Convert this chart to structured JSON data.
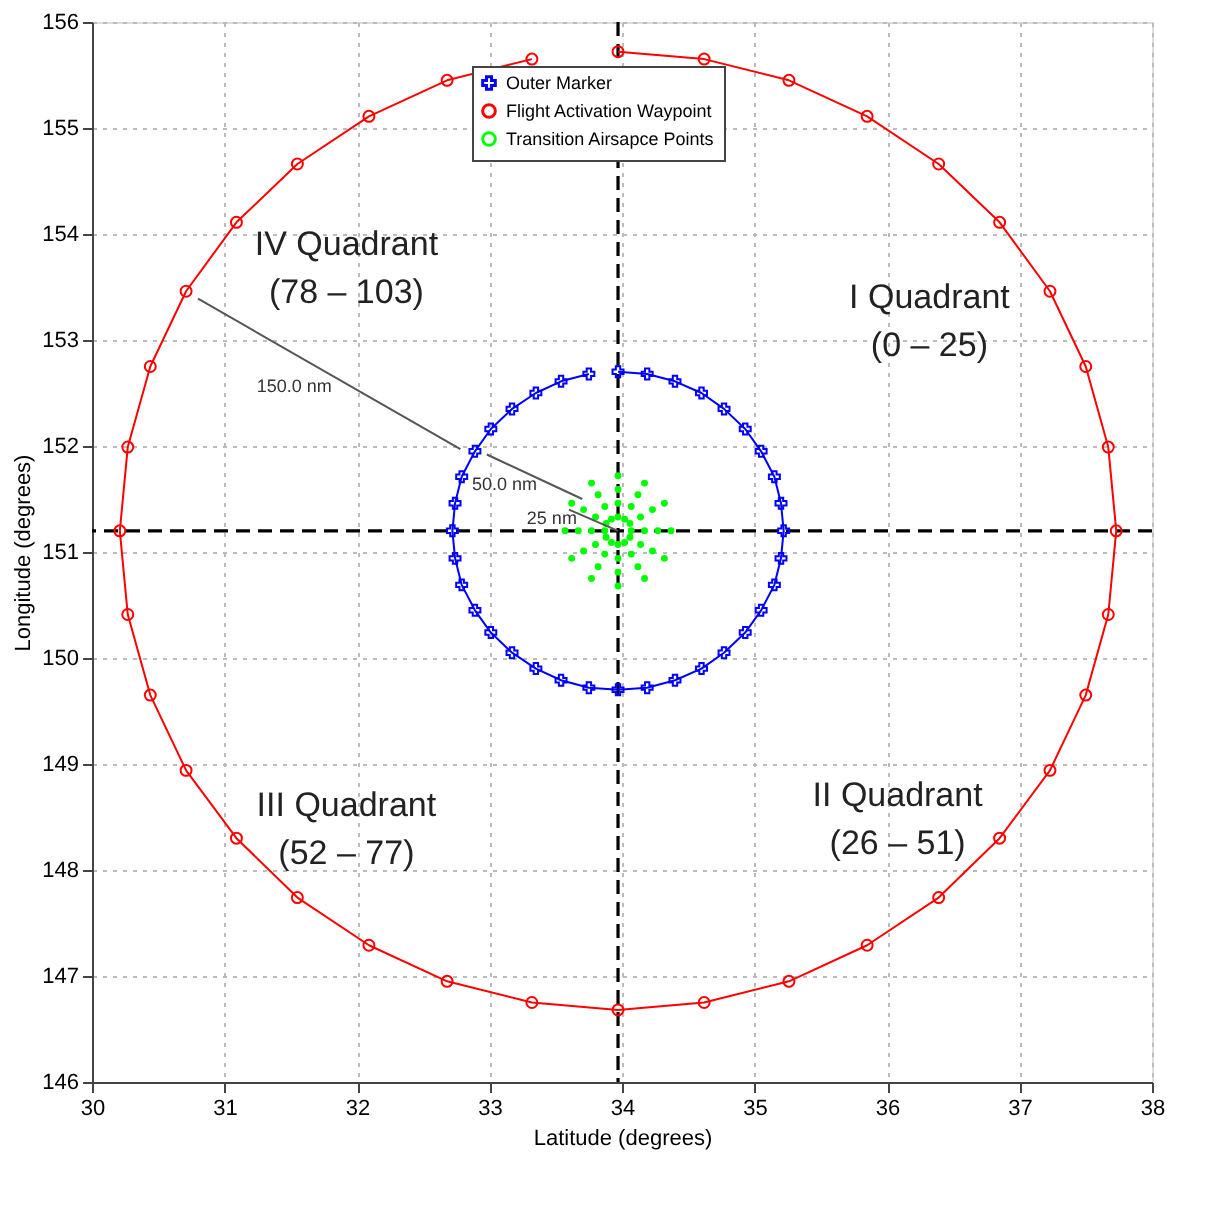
{
  "chart_data": {
    "type": "line",
    "xlabel": "Latitude (degrees)",
    "ylabel": "Longitude (degrees)",
    "xlim": [
      30,
      38
    ],
    "xticks": [
      30,
      31,
      32,
      33,
      34,
      35,
      36,
      37,
      38
    ],
    "ylim": [
      146,
      156
    ],
    "yticks": [
      146,
      147,
      148,
      149,
      150,
      151,
      152,
      153,
      154,
      155,
      156
    ],
    "grid": true,
    "legend": "top",
    "series": [
      {
        "name": "Outer Marker",
        "color": "#0000ff",
        "marker": "cross",
        "line_style": "solid",
        "x": [
          33.97,
          34.19,
          34.4,
          34.6,
          34.77,
          34.93,
          35.05,
          35.15,
          35.2,
          35.22,
          35.2,
          35.15,
          35.05,
          34.93,
          34.77,
          34.6,
          34.4,
          34.19,
          33.97,
          33.75,
          33.54,
          33.35,
          33.17,
          33.01,
          32.89,
          32.79,
          32.74,
          32.72,
          32.74,
          32.79,
          32.89,
          33.01,
          33.17,
          33.35,
          33.54,
          33.75
        ],
        "values": [
          152.7,
          152.68,
          152.61,
          152.5,
          152.35,
          152.16,
          151.95,
          151.71,
          151.46,
          151.2,
          150.94,
          150.69,
          150.45,
          150.24,
          150.05,
          149.9,
          149.79,
          149.72,
          149.7,
          149.72,
          149.79,
          149.9,
          150.05,
          150.24,
          150.45,
          150.69,
          150.94,
          151.2,
          151.46,
          151.71,
          151.95,
          152.16,
          152.35,
          152.5,
          152.61,
          152.68
        ]
      },
      {
        "name": "Flight Activation Waypoint",
        "color": "#ff0000",
        "marker": "circle",
        "line_style": "solid",
        "x": [
          33.97,
          34.62,
          35.26,
          35.85,
          36.39,
          36.85,
          37.23,
          37.5,
          37.67,
          37.73,
          37.67,
          37.5,
          37.23,
          36.85,
          36.39,
          35.85,
          35.26,
          34.62,
          33.97,
          33.32,
          32.68,
          32.09,
          31.55,
          31.09,
          30.71,
          30.44,
          30.27,
          30.21,
          30.27,
          30.44,
          30.71,
          31.09,
          31.55,
          32.09,
          32.68,
          33.32
        ],
        "values": [
          155.72,
          155.65,
          155.45,
          155.11,
          154.66,
          154.11,
          153.46,
          152.75,
          151.99,
          151.2,
          150.41,
          149.65,
          148.94,
          148.3,
          147.74,
          147.29,
          146.95,
          146.75,
          146.68,
          146.75,
          146.95,
          147.29,
          147.74,
          148.3,
          148.94,
          149.65,
          150.41,
          151.2,
          151.99,
          152.75,
          153.46,
          154.11,
          154.66,
          155.11,
          155.45,
          155.65
        ]
      },
      {
        "name": "Transition Airsapce Points",
        "color": "#00ff00",
        "type": "scatter",
        "marker": "circle",
        "x": [
          33.97,
          34.02,
          34.06,
          34.07,
          34.06,
          34.02,
          33.97,
          33.92,
          33.88,
          33.87,
          33.88,
          33.92,
          33.97,
          34.07,
          34.14,
          34.17,
          34.14,
          34.07,
          33.97,
          33.87,
          33.8,
          33.77,
          33.8,
          33.87,
          33.97,
          34.12,
          34.23,
          34.27,
          34.23,
          34.12,
          33.97,
          33.82,
          33.71,
          33.67,
          33.71,
          33.82,
          33.97,
          34.17,
          34.32,
          34.37,
          34.32,
          34.17,
          33.97,
          33.77,
          33.62,
          33.57,
          33.62,
          33.77
        ],
        "values": [
          151.33,
          151.31,
          151.27,
          151.2,
          151.14,
          151.09,
          151.07,
          151.09,
          151.14,
          151.2,
          151.27,
          151.31,
          151.46,
          151.43,
          151.33,
          151.2,
          151.07,
          150.98,
          150.94,
          150.98,
          151.07,
          151.2,
          151.33,
          151.43,
          151.59,
          151.54,
          151.4,
          151.2,
          151.01,
          150.86,
          150.81,
          150.86,
          151.01,
          151.2,
          151.4,
          151.54,
          151.72,
          151.65,
          151.46,
          151.2,
          150.94,
          150.75,
          150.68,
          150.75,
          150.94,
          151.2,
          151.46,
          151.65
        ]
      },
      {
        "color": "#555555",
        "marker": "none",
        "line_style": "solid",
        "x": [
          30.8,
          32.78
        ],
        "values": [
          153.39,
          151.97
        ]
      },
      {
        "color": "#555555",
        "marker": "none",
        "line_style": "solid",
        "x": [
          32.98,
          33.7
        ],
        "values": [
          151.92,
          151.5
        ]
      },
      {
        "color": "#555555",
        "marker": "none",
        "line_style": "solid",
        "x": [
          33.6,
          33.97
        ],
        "values": [
          151.4,
          151.2
        ]
      }
    ],
    "ref_lines": [
      {
        "axis": "x",
        "value": 33.97,
        "color": "#000000",
        "line_style": "dashed"
      },
      {
        "axis": "y",
        "value": 151.2,
        "color": "#000000",
        "line_style": "dashed"
      }
    ],
    "annotations": [
      "I Quadrant\n(0 – 25)",
      "II Quadrant\n(26 – 51)",
      "III Quadrant\n(52 – 77)",
      "IV Quadrant\n(78 – 103)",
      {
        "text": "150.0 nm",
        "x": 31.9,
        "y": 152.57
      },
      {
        "text": "50.0 nm",
        "x": 33.45,
        "y": 151.64
      },
      {
        "text": "25 nm",
        "x": 33.75,
        "y": 151.32
      }
    ]
  }
}
